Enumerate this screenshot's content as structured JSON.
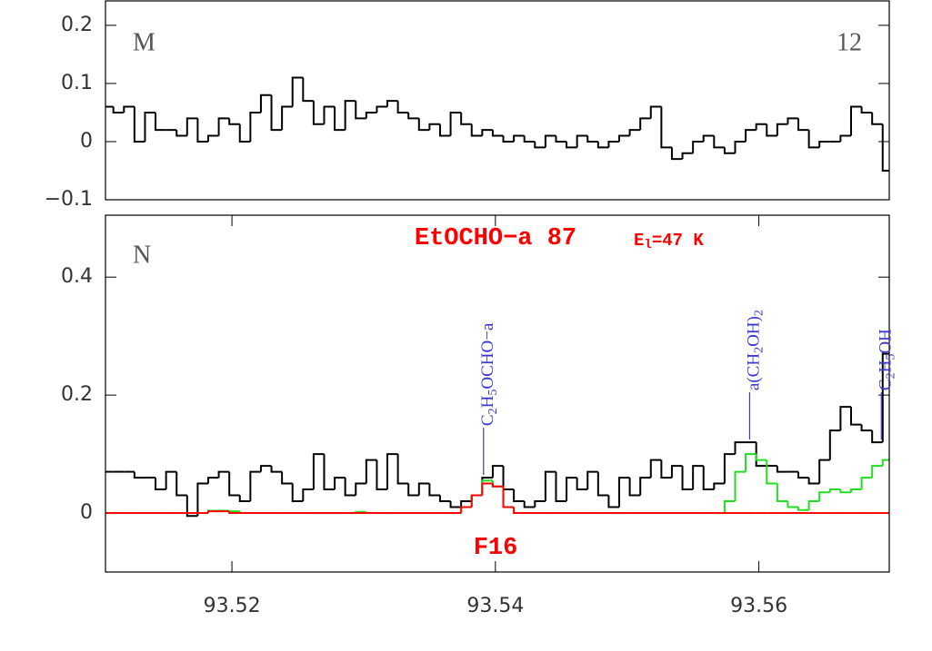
{
  "chart_data": [
    {
      "type": "step",
      "panel_label": "M",
      "annotation": "12",
      "xlim": [
        93.5104,
        93.5699
      ],
      "ylim": [
        -0.1,
        0.242
      ],
      "yticks": [
        {
          "value": -0.1,
          "label": "−0.1"
        },
        0,
        0.1,
        0.2
      ],
      "x": [
        93.5106,
        93.5114,
        93.5122,
        93.513,
        93.5138,
        93.5146,
        93.5154,
        93.5162,
        93.517,
        93.5178,
        93.5186,
        93.5194,
        93.5202,
        93.521,
        93.5218,
        93.5226,
        93.5234,
        93.5242,
        93.525,
        93.5258,
        93.5266,
        93.5274,
        93.5282,
        93.529,
        93.5298,
        93.5306,
        93.5314,
        93.5322,
        93.533,
        93.5338,
        93.5346,
        93.5354,
        93.5362,
        93.537,
        93.5378,
        93.5386,
        93.5394,
        93.5402,
        93.541,
        93.5418,
        93.5426,
        93.5434,
        93.5442,
        93.545,
        93.5458,
        93.5466,
        93.5474,
        93.5482,
        93.549,
        93.5498,
        93.5506,
        93.5514,
        93.5522,
        93.553,
        93.5538,
        93.5546,
        93.5554,
        93.5562,
        93.557,
        93.5578,
        93.5586,
        93.5594,
        93.5602,
        93.561,
        93.5618,
        93.5626,
        93.5634,
        93.5642,
        93.565,
        93.5658,
        93.5666,
        93.5674,
        93.5682,
        93.569,
        93.5698
      ],
      "series": [
        {
          "color": "#000000",
          "values": [
            0.06,
            0.05,
            0.06,
            0.0,
            0.05,
            0.02,
            0.02,
            0.01,
            0.04,
            0.0,
            0.01,
            0.04,
            0.03,
            0.0,
            0.05,
            0.08,
            0.02,
            0.06,
            0.11,
            0.07,
            0.03,
            0.06,
            0.02,
            0.07,
            0.04,
            0.05,
            0.06,
            0.07,
            0.05,
            0.04,
            0.02,
            0.03,
            0.01,
            0.05,
            0.03,
            0.01,
            0.02,
            0.01,
            0.0,
            0.01,
            0.0,
            -0.01,
            0.01,
            0.0,
            -0.01,
            0.01,
            0.0,
            -0.01,
            0.0,
            0.01,
            0.02,
            0.04,
            0.06,
            -0.01,
            -0.03,
            -0.02,
            0.0,
            0.01,
            -0.01,
            -0.02,
            0.0,
            0.02,
            0.03,
            0.01,
            0.03,
            0.04,
            0.02,
            -0.01,
            0.0,
            0.0,
            0.01,
            0.06,
            0.05,
            0.03,
            -0.05
          ]
        }
      ]
    },
    {
      "type": "step",
      "panel_label": "N",
      "title": "EtOCHO−a 87",
      "subtitle": [
        "E",
        "l",
        "=47 K"
      ],
      "footer": "F16",
      "title_color": "#ff0000",
      "marker_color": "#3a3ad0",
      "xlim": [
        93.5104,
        93.5699
      ],
      "ylim": [
        -0.1,
        0.505
      ],
      "yticks": [
        0,
        0.2,
        0.4
      ],
      "xticks": [
        93.52,
        93.54,
        93.56
      ],
      "x": [
        93.5106,
        93.5114,
        93.5122,
        93.513,
        93.5138,
        93.5146,
        93.5154,
        93.5162,
        93.517,
        93.5178,
        93.5186,
        93.5194,
        93.5202,
        93.521,
        93.5218,
        93.5226,
        93.5234,
        93.5242,
        93.525,
        93.5258,
        93.5266,
        93.5274,
        93.5282,
        93.529,
        93.5298,
        93.5306,
        93.5314,
        93.5322,
        93.533,
        93.5338,
        93.5346,
        93.5354,
        93.5362,
        93.537,
        93.5378,
        93.5386,
        93.5394,
        93.5402,
        93.541,
        93.5418,
        93.5426,
        93.5434,
        93.5442,
        93.545,
        93.5458,
        93.5466,
        93.5474,
        93.5482,
        93.549,
        93.5498,
        93.5506,
        93.5514,
        93.5522,
        93.553,
        93.5538,
        93.5546,
        93.5554,
        93.5562,
        93.557,
        93.5578,
        93.5586,
        93.5594,
        93.5602,
        93.561,
        93.5618,
        93.5626,
        93.5634,
        93.5642,
        93.565,
        93.5658,
        93.5666,
        93.5674,
        93.5682,
        93.569,
        93.5698
      ],
      "series": [
        {
          "color": "#000000",
          "values": [
            0.07,
            0.07,
            0.07,
            0.06,
            0.06,
            0.04,
            0.07,
            0.03,
            -0.005,
            0.05,
            0.06,
            0.07,
            0.03,
            0.02,
            0.07,
            0.08,
            0.07,
            0.05,
            0.02,
            0.04,
            0.1,
            0.04,
            0.06,
            0.03,
            0.05,
            0.09,
            0.04,
            0.1,
            0.05,
            0.03,
            0.05,
            0.03,
            0.02,
            0.01,
            0.02,
            0.03,
            0.06,
            0.08,
            0.04,
            0.02,
            0.01,
            0.02,
            0.07,
            0.02,
            0.06,
            0.04,
            0.07,
            0.03,
            0.01,
            0.06,
            0.03,
            0.06,
            0.09,
            0.06,
            0.08,
            0.04,
            0.08,
            0.04,
            0.05,
            0.1,
            0.12,
            0.12,
            0.08,
            0.08,
            0.07,
            0.07,
            0.06,
            0.05,
            0.09,
            0.14,
            0.18,
            0.15,
            0.14,
            0.12,
            0.27
          ]
        },
        {
          "color": "#22dd22",
          "values": [
            0,
            0,
            0,
            0,
            0,
            0,
            0,
            0,
            0,
            0,
            0.004,
            0.004,
            0.003,
            0,
            0,
            0,
            0,
            0,
            0,
            0,
            0,
            0,
            0,
            0,
            0.002,
            0,
            0,
            0,
            0,
            0,
            0,
            0,
            0,
            0,
            0.01,
            0.03,
            0.055,
            0.045,
            0.01,
            0,
            0,
            0,
            0,
            0,
            0,
            0,
            0,
            0,
            0,
            0,
            0,
            0,
            0,
            0,
            0,
            0,
            0,
            0,
            0,
            0.02,
            0.07,
            0.1,
            0.09,
            0.05,
            0.02,
            0.01,
            0.005,
            0.02,
            0.035,
            0.04,
            0.035,
            0.04,
            0.06,
            0.08,
            0.09
          ]
        },
        {
          "color": "#ff0000",
          "values": [
            0,
            0,
            0,
            0,
            0,
            0,
            0,
            0,
            0,
            0,
            0.003,
            0.003,
            0,
            0,
            0,
            0,
            0,
            0,
            0,
            0,
            0,
            0,
            0,
            0,
            0,
            0,
            0,
            0,
            0,
            0,
            0,
            0,
            0,
            0,
            0.01,
            0.03,
            0.05,
            0.045,
            0.01,
            0,
            0,
            0,
            0,
            0,
            0,
            0,
            0,
            0,
            0,
            0,
            0,
            0,
            0,
            0,
            0,
            0,
            0,
            0,
            0,
            0,
            0,
            0,
            0,
            0,
            0,
            0,
            0,
            0,
            0,
            0,
            0,
            0,
            0,
            0,
            0
          ]
        }
      ],
      "markers": [
        {
          "x": 93.5391,
          "label": [
            "C",
            "2",
            "H",
            "5",
            "OCHO−a"
          ]
        },
        {
          "x": 93.5593,
          "label": [
            "a(CH",
            "2",
            "OH)",
            "2"
          ]
        },
        {
          "x": 93.5693,
          "label": [
            "C",
            "2",
            "H",
            "5",
            "OH"
          ]
        }
      ]
    }
  ]
}
